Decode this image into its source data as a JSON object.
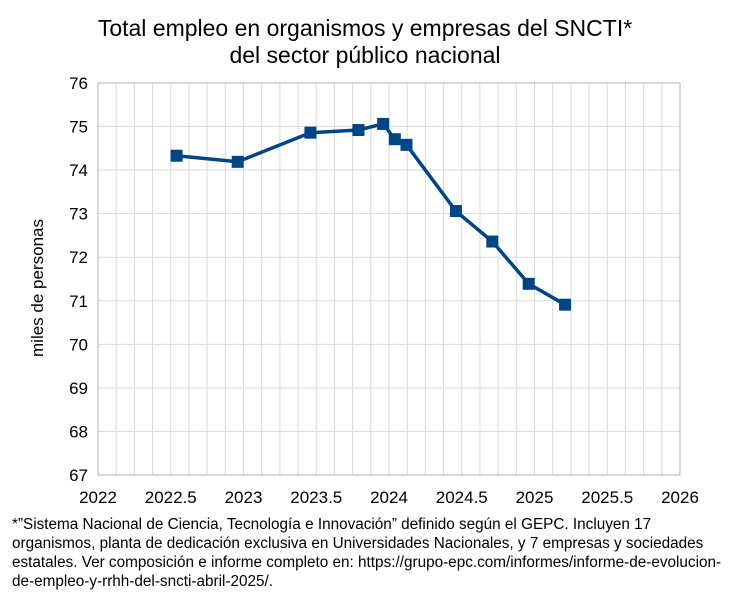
{
  "chart_data": {
    "type": "line",
    "title": "Total empleo en organismos y empresas del SNCTI*",
    "subtitle": "del sector público nacional",
    "xlabel": "",
    "ylabel": "miles de personas",
    "xlim": [
      2022,
      2026
    ],
    "ylim": [
      67,
      76
    ],
    "x_ticks": [
      2022,
      2022.5,
      2023,
      2023.5,
      2024,
      2024.5,
      2025,
      2025.5,
      2026
    ],
    "x_tick_labels": [
      "2022",
      "2022.5",
      "2023",
      "2023.5",
      "2024",
      "2024.5",
      "2025",
      "2025.5",
      "2026"
    ],
    "y_ticks": [
      67,
      68,
      69,
      70,
      71,
      72,
      73,
      74,
      75,
      76
    ],
    "y_tick_labels": [
      "67",
      "68",
      "69",
      "70",
      "71",
      "72",
      "73",
      "74",
      "75",
      "76"
    ],
    "grid": true,
    "series": [
      {
        "x": [
          2022.54,
          2022.96,
          2023.46,
          2023.79,
          2023.96,
          2024.04,
          2024.12,
          2024.46,
          2024.71,
          2024.96,
          2025.21
        ],
        "y": [
          74.33,
          74.19,
          74.86,
          74.92,
          75.06,
          74.71,
          74.58,
          73.06,
          72.36,
          71.39,
          70.91
        ],
        "color": "#004586"
      }
    ]
  },
  "footnote": "*”Sistema Nacional de Ciencia, Tecnología e Innovación” definido según el GEPC. Incluyen 17 organismos, planta de dedicación exclusiva en Universidades Nacionales, y 7 empresas y sociedades estatales. Ver composición e informe completo en: https://grupo-epc.com/informes/informe-de-evolucion-de-empleo-y-rrhh-del-sncti-abril-2025/."
}
